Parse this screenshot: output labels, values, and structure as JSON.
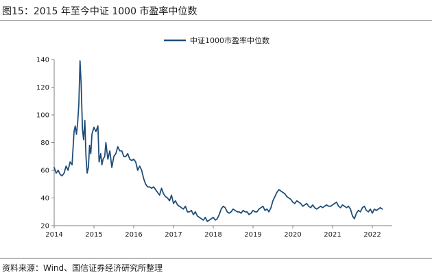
{
  "title": "图15：2015 年至今中证 1000 市盈率中位数",
  "source": "资料来源：Wind、国信证券经济研究所整理",
  "colors": {
    "series": "#1f4e79",
    "axis": "#7f7f7f"
  },
  "chart_data": {
    "type": "line",
    "title": "",
    "xlabel": "",
    "ylabel": "",
    "xlim": [
      2014,
      2022.5
    ],
    "ylim": [
      20,
      140
    ],
    "y_ticks": [
      20,
      40,
      60,
      80,
      100,
      120,
      140
    ],
    "x_ticks": [
      "2014",
      "2015",
      "2016",
      "2017",
      "2018",
      "2019",
      "2020",
      "2021",
      "2022"
    ],
    "legend_position": "top-center",
    "grid": false,
    "series": [
      {
        "name": "中证1000市盈率中位数",
        "color": "#1f4e79",
        "x": [
          2014.0,
          2014.05,
          2014.1,
          2014.15,
          2014.2,
          2014.25,
          2014.3,
          2014.35,
          2014.4,
          2014.45,
          2014.5,
          2014.53,
          2014.56,
          2014.59,
          2014.62,
          2014.65,
          2014.68,
          2014.71,
          2014.74,
          2014.77,
          2014.8,
          2014.83,
          2014.86,
          2014.89,
          2014.92,
          2014.95,
          2015.0,
          2015.05,
          2015.1,
          2015.13,
          2015.17,
          2015.2,
          2015.23,
          2015.27,
          2015.3,
          2015.35,
          2015.4,
          2015.45,
          2015.5,
          2015.55,
          2015.6,
          2015.65,
          2015.7,
          2015.75,
          2015.8,
          2015.85,
          2015.9,
          2015.95,
          2016.0,
          2016.05,
          2016.1,
          2016.15,
          2016.2,
          2016.25,
          2016.3,
          2016.35,
          2016.4,
          2016.45,
          2016.5,
          2016.55,
          2016.6,
          2016.65,
          2016.7,
          2016.75,
          2016.8,
          2016.85,
          2016.9,
          2016.95,
          2017.0,
          2017.05,
          2017.1,
          2017.15,
          2017.2,
          2017.25,
          2017.3,
          2017.35,
          2017.4,
          2017.45,
          2017.5,
          2017.55,
          2017.6,
          2017.65,
          2017.7,
          2017.75,
          2017.8,
          2017.85,
          2017.9,
          2017.95,
          2018.0,
          2018.05,
          2018.1,
          2018.15,
          2018.2,
          2018.25,
          2018.3,
          2018.35,
          2018.4,
          2018.45,
          2018.5,
          2018.55,
          2018.6,
          2018.65,
          2018.7,
          2018.75,
          2018.8,
          2018.85,
          2018.9,
          2018.95,
          2019.0,
          2019.05,
          2019.1,
          2019.15,
          2019.2,
          2019.25,
          2019.3,
          2019.35,
          2019.4,
          2019.45,
          2019.5,
          2019.55,
          2019.6,
          2019.65,
          2019.7,
          2019.75,
          2019.8,
          2019.85,
          2019.9,
          2019.95,
          2020.0,
          2020.05,
          2020.1,
          2020.15,
          2020.2,
          2020.25,
          2020.3,
          2020.35,
          2020.4,
          2020.45,
          2020.5,
          2020.55,
          2020.6,
          2020.65,
          2020.7,
          2020.75,
          2020.8,
          2020.85,
          2020.9,
          2020.95,
          2021.0,
          2021.05,
          2021.1,
          2021.15,
          2021.2,
          2021.25,
          2021.3,
          2021.35,
          2021.4,
          2021.45,
          2021.5,
          2021.55,
          2021.6,
          2021.65,
          2021.7,
          2021.75,
          2021.8,
          2021.85,
          2021.9,
          2021.95,
          2022.0,
          2022.05,
          2022.1,
          2022.15,
          2022.2,
          2022.25
        ],
        "y": [
          62,
          58,
          60,
          57,
          56,
          58,
          63,
          60,
          66,
          64,
          88,
          92,
          86,
          94,
          108,
          139,
          122,
          90,
          82,
          96,
          70,
          58,
          62,
          78,
          72,
          86,
          91,
          88,
          92,
          66,
          72,
          64,
          68,
          70,
          80,
          68,
          74,
          62,
          70,
          72,
          77,
          74,
          74,
          70,
          70,
          72,
          68,
          67,
          68,
          66,
          60,
          63,
          60,
          54,
          50,
          48,
          48,
          47,
          48,
          46,
          44,
          42,
          47,
          43,
          41,
          40,
          38,
          42,
          36,
          38,
          35,
          34,
          33,
          32,
          34,
          30,
          30,
          31,
          28,
          30,
          27,
          26,
          25,
          24,
          26,
          23,
          24,
          25,
          26,
          24,
          25,
          28,
          32,
          34,
          33,
          30,
          29,
          30,
          32,
          31,
          30,
          30,
          29,
          31,
          30,
          30,
          28,
          29,
          31,
          30,
          30,
          32,
          33,
          34,
          31,
          32,
          30,
          33,
          38,
          41,
          44,
          46,
          45,
          44,
          43,
          41,
          40,
          39,
          37,
          36,
          38,
          37,
          36,
          34,
          35,
          36,
          34,
          33,
          35,
          33,
          32,
          33,
          34,
          33,
          34,
          35,
          34,
          34,
          35,
          36,
          37,
          34,
          33,
          35,
          34,
          33,
          34,
          32,
          27,
          25,
          29,
          31,
          30,
          33,
          34,
          31,
          30,
          32,
          29,
          32,
          31,
          32,
          33,
          32
        ]
      }
    ]
  }
}
